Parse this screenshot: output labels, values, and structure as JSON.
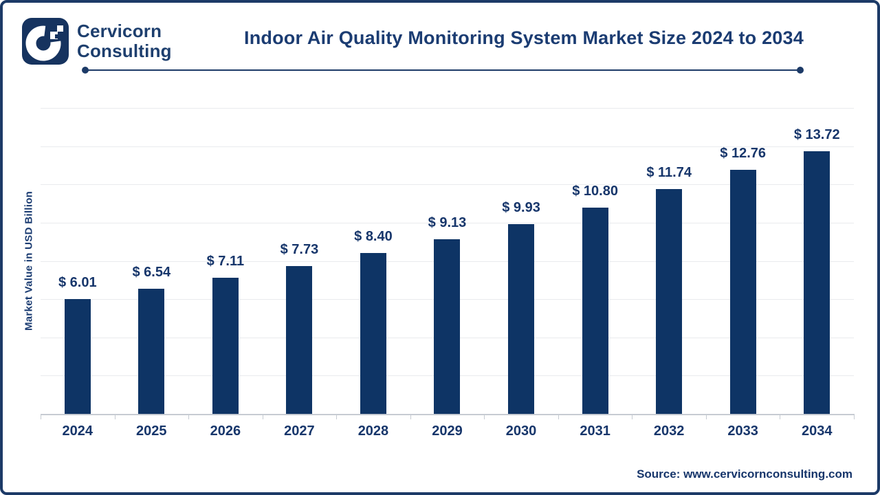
{
  "brand": {
    "line1": "Cervicorn",
    "line2": "Consulting"
  },
  "header": {
    "title": "Indoor Air Quality Monitoring System Market Size 2024 to 2034"
  },
  "chart_data": {
    "type": "bar",
    "title": "Indoor Air Quality Monitoring System Market Size 2024 to 2034",
    "categories": [
      "2024",
      "2025",
      "2026",
      "2027",
      "2028",
      "2029",
      "2030",
      "2031",
      "2032",
      "2033",
      "2034"
    ],
    "values": [
      6.01,
      6.54,
      7.11,
      7.73,
      8.4,
      9.13,
      9.93,
      10.8,
      11.74,
      12.76,
      13.72
    ],
    "value_labels": [
      "$ 6.01",
      "$ 6.54",
      "$ 7.11",
      "$ 7.73",
      "$ 8.40",
      "$ 9.13",
      "$ 9.93",
      "$ 10.80",
      "$ 11.74",
      "$ 12.76",
      "$ 13.72"
    ],
    "value_prefix": "$ ",
    "xlabel": "",
    "ylabel": "Market Value in USD Billion",
    "ylim": [
      0,
      16
    ],
    "gridline_step": 2,
    "grid": true,
    "legend": false,
    "bar_color": "#0e3465"
  },
  "footer": {
    "source": "Source: www.cervicornconsulting.com"
  },
  "colors": {
    "frame_border": "#1c3a67",
    "bar": "#0e3465",
    "text_navy": "#17366b",
    "gridline": "#e9ebee",
    "axis_line": "#c6cbd2",
    "background": "#ffffff"
  },
  "icons": {
    "logo": "cervicorn-c-pixel-logo"
  }
}
